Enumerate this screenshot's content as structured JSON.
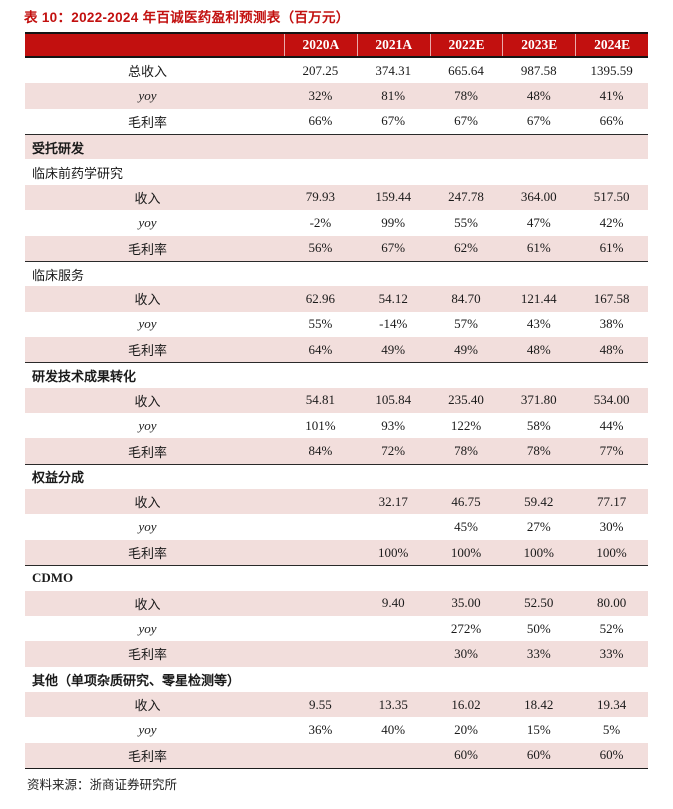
{
  "title": "表 10：2022-2024 年百诚医药盈利预测表（百万元）",
  "source": "资料来源：浙商证券研究所",
  "colors": {
    "header_red": "#c2100f",
    "title_red": "#c2100f",
    "row_pink": "#f2dedc",
    "border_dark": "#1c1c1c"
  },
  "chart_data": {
    "type": "table",
    "title": "表 10：2022-2024 年百诚医药盈利预测表（百万元）",
    "categories": [
      "2020A",
      "2021A",
      "2022E",
      "2023E",
      "2024E"
    ],
    "series": [
      {
        "name": "总收入",
        "values": [
          207.25,
          374.31,
          665.64,
          987.58,
          1395.59
        ]
      },
      {
        "name": "总收入 yoy",
        "values": [
          "32%",
          "81%",
          "78%",
          "48%",
          "41%"
        ]
      },
      {
        "name": "总收入 毛利率",
        "values": [
          "66%",
          "67%",
          "67%",
          "67%",
          "66%"
        ]
      },
      {
        "name": "受托研发-临床前药学研究 收入",
        "values": [
          79.93,
          159.44,
          247.78,
          364.0,
          517.5
        ]
      },
      {
        "name": "受托研发-临床前药学研究 yoy",
        "values": [
          "-2%",
          "99%",
          "55%",
          "47%",
          "42%"
        ]
      },
      {
        "name": "受托研发-临床前药学研究 毛利率",
        "values": [
          "56%",
          "67%",
          "62%",
          "61%",
          "61%"
        ]
      },
      {
        "name": "受托研发-临床服务 收入",
        "values": [
          62.96,
          54.12,
          84.7,
          121.44,
          167.58
        ]
      },
      {
        "name": "受托研发-临床服务 yoy",
        "values": [
          "55%",
          "-14%",
          "57%",
          "43%",
          "38%"
        ]
      },
      {
        "name": "受托研发-临床服务 毛利率",
        "values": [
          "64%",
          "49%",
          "49%",
          "48%",
          "48%"
        ]
      },
      {
        "name": "研发技术成果转化 收入",
        "values": [
          54.81,
          105.84,
          235.4,
          371.8,
          534.0
        ]
      },
      {
        "name": "研发技术成果转化 yoy",
        "values": [
          "101%",
          "93%",
          "122%",
          "58%",
          "44%"
        ]
      },
      {
        "name": "研发技术成果转化 毛利率",
        "values": [
          "84%",
          "72%",
          "78%",
          "78%",
          "77%"
        ]
      },
      {
        "name": "权益分成 收入",
        "values": [
          null,
          32.17,
          46.75,
          59.42,
          77.17
        ]
      },
      {
        "name": "权益分成 yoy",
        "values": [
          null,
          null,
          "45%",
          "27%",
          "30%"
        ]
      },
      {
        "name": "权益分成 毛利率",
        "values": [
          null,
          "100%",
          "100%",
          "100%",
          "100%"
        ]
      },
      {
        "name": "CDMO 收入",
        "values": [
          null,
          9.4,
          35.0,
          52.5,
          80.0
        ]
      },
      {
        "name": "CDMO yoy",
        "values": [
          null,
          null,
          "272%",
          "50%",
          "52%"
        ]
      },
      {
        "name": "CDMO 毛利率",
        "values": [
          null,
          null,
          "30%",
          "33%",
          "33%"
        ]
      },
      {
        "name": "其他 收入",
        "values": [
          9.55,
          13.35,
          16.02,
          18.42,
          19.34
        ]
      },
      {
        "name": "其他 yoy",
        "values": [
          "36%",
          "40%",
          "20%",
          "15%",
          "5%"
        ]
      },
      {
        "name": "其他 毛利率",
        "values": [
          null,
          null,
          "60%",
          "60%",
          "60%"
        ]
      }
    ]
  },
  "table": {
    "columns": [
      "2020A",
      "2021A",
      "2022E",
      "2023E",
      "2024E"
    ],
    "rows": [
      {
        "type": "metric",
        "label": "总收入",
        "values": [
          "207.25",
          "374.31",
          "665.64",
          "987.58",
          "1395.59"
        ]
      },
      {
        "type": "metric",
        "italic": true,
        "label": "yoy",
        "values": [
          "32%",
          "81%",
          "78%",
          "48%",
          "41%"
        ]
      },
      {
        "type": "metric",
        "label": "毛利率",
        "values": [
          "66%",
          "67%",
          "67%",
          "67%",
          "66%"
        ]
      },
      {
        "type": "section",
        "divider": true,
        "label": "受托研发"
      },
      {
        "type": "subsection",
        "label": "临床前药学研究"
      },
      {
        "type": "metric",
        "label": "收入",
        "values": [
          "79.93",
          "159.44",
          "247.78",
          "364.00",
          "517.50"
        ]
      },
      {
        "type": "metric",
        "italic": true,
        "label": "yoy",
        "values": [
          "-2%",
          "99%",
          "55%",
          "47%",
          "42%"
        ]
      },
      {
        "type": "metric",
        "label": "毛利率",
        "values": [
          "56%",
          "67%",
          "62%",
          "61%",
          "61%"
        ]
      },
      {
        "type": "subsection",
        "divider": true,
        "label": "临床服务"
      },
      {
        "type": "metric",
        "label": "收入",
        "values": [
          "62.96",
          "54.12",
          "84.70",
          "121.44",
          "167.58"
        ]
      },
      {
        "type": "metric",
        "italic": true,
        "label": "yoy",
        "values": [
          "55%",
          "-14%",
          "57%",
          "43%",
          "38%"
        ]
      },
      {
        "type": "metric",
        "label": "毛利率",
        "values": [
          "64%",
          "49%",
          "49%",
          "48%",
          "48%"
        ]
      },
      {
        "type": "section",
        "divider": true,
        "label": "研发技术成果转化"
      },
      {
        "type": "metric",
        "label": "收入",
        "values": [
          "54.81",
          "105.84",
          "235.40",
          "371.80",
          "534.00"
        ]
      },
      {
        "type": "metric",
        "italic": true,
        "label": "yoy",
        "values": [
          "101%",
          "93%",
          "122%",
          "58%",
          "44%"
        ]
      },
      {
        "type": "metric",
        "label": "毛利率",
        "values": [
          "84%",
          "72%",
          "78%",
          "78%",
          "77%"
        ]
      },
      {
        "type": "section",
        "divider": true,
        "label": "权益分成"
      },
      {
        "type": "metric",
        "label": "收入",
        "values": [
          "",
          "32.17",
          "46.75",
          "59.42",
          "77.17"
        ]
      },
      {
        "type": "metric",
        "italic": true,
        "label": "yoy",
        "values": [
          "",
          "",
          "45%",
          "27%",
          "30%"
        ]
      },
      {
        "type": "metric",
        "label": "毛利率",
        "values": [
          "",
          "100%",
          "100%",
          "100%",
          "100%"
        ]
      },
      {
        "type": "section",
        "divider": true,
        "label": "CDMO"
      },
      {
        "type": "metric",
        "label": "收入",
        "values": [
          "",
          "9.40",
          "35.00",
          "52.50",
          "80.00"
        ]
      },
      {
        "type": "metric",
        "italic": true,
        "label": "yoy",
        "values": [
          "",
          "",
          "272%",
          "50%",
          "52%"
        ]
      },
      {
        "type": "metric",
        "label": "毛利率",
        "values": [
          "",
          "",
          "30%",
          "33%",
          "33%"
        ]
      },
      {
        "type": "section",
        "label": "其他（单项杂质研究、零星检测等）"
      },
      {
        "type": "metric",
        "label": "收入",
        "values": [
          "9.55",
          "13.35",
          "16.02",
          "18.42",
          "19.34"
        ]
      },
      {
        "type": "metric",
        "italic": true,
        "label": "yoy",
        "values": [
          "36%",
          "40%",
          "20%",
          "15%",
          "5%"
        ]
      },
      {
        "type": "metric",
        "label": "毛利率",
        "values": [
          "",
          "",
          "60%",
          "60%",
          "60%"
        ]
      }
    ]
  }
}
